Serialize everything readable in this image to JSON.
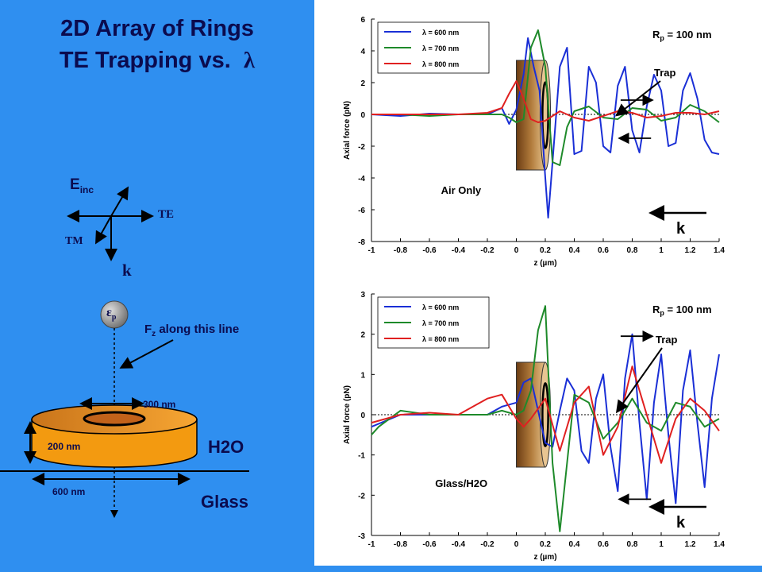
{
  "slide": {
    "title_line1": "2D Array of Rings",
    "title_line2": "TE Trapping vs.",
    "title_symbol": "λ"
  },
  "polarization_diagram": {
    "e_label": "E",
    "e_sub": "inc",
    "te_label": "TE",
    "tm_label": "TM",
    "k_label": "k"
  },
  "ring_diagram": {
    "particle_label": "ε",
    "particle_sub": "p",
    "fz_label": "F",
    "fz_sub": "z",
    "fz_text": " along this line",
    "dim_300": "300 nm",
    "dim_200": "200 nm",
    "dim_600": "600 nm",
    "medium_top": "H2O",
    "medium_bottom": "Glass"
  },
  "colors": {
    "slide_bg": "#2f8ff0",
    "title": "#0b0b4e",
    "ring_fill": "#f39a10",
    "series_600": "#1a2fd6",
    "series_700": "#1e8a2a",
    "series_800": "#e02020"
  },
  "chart_data": [
    {
      "type": "line",
      "ylabel": "Axial force (pN)",
      "xlabel": "z (µm)",
      "xlim": [
        -1,
        1.4
      ],
      "ylim": [
        -8,
        6
      ],
      "xticks": [
        "-1",
        "-0.8",
        "-0.6",
        "-0.4",
        "-0.2",
        "0",
        "0.2",
        "0.4",
        "0.6",
        "0.8",
        "1",
        "1.2",
        "1.4"
      ],
      "yticks": [
        "6",
        "4",
        "2",
        "0",
        "-2",
        "-4",
        "-6",
        "-8"
      ],
      "annotations": {
        "rp_label": "R",
        "rp_sub": "p",
        "rp_value": " = 100 nm",
        "trap": "Trap",
        "medium": "Air Only",
        "k": "k"
      },
      "series": [
        {
          "name": "λ =  600 nm",
          "color": "#1a2fd6",
          "x": [
            -1,
            -0.8,
            -0.6,
            -0.4,
            -0.2,
            -0.1,
            -0.05,
            0,
            0.05,
            0.08,
            0.12,
            0.16,
            0.2,
            0.22,
            0.25,
            0.3,
            0.35,
            0.4,
            0.45,
            0.5,
            0.55,
            0.6,
            0.65,
            0.7,
            0.75,
            0.8,
            0.85,
            0.9,
            0.95,
            1.0,
            1.05,
            1.1,
            1.15,
            1.2,
            1.25,
            1.3,
            1.35,
            1.4
          ],
          "y": [
            0,
            -0.1,
            0.05,
            0,
            0,
            0.4,
            -0.6,
            0.3,
            2.5,
            4.8,
            3.0,
            1.5,
            -4.0,
            -6.5,
            -3.0,
            3.0,
            4.2,
            -2.5,
            -2.3,
            3.0,
            2.0,
            -2.0,
            -2.4,
            1.8,
            3.0,
            -1.0,
            -2.4,
            0.5,
            2.5,
            1.5,
            -2.0,
            -1.8,
            1.5,
            2.6,
            1.0,
            -1.6,
            -2.4,
            -2.5
          ]
        },
        {
          "name": "λ = 700 nm",
          "color": "#1e8a2a",
          "x": [
            -1,
            -0.8,
            -0.6,
            -0.4,
            -0.2,
            -0.1,
            -0.05,
            0,
            0.05,
            0.1,
            0.15,
            0.2,
            0.25,
            0.3,
            0.35,
            0.4,
            0.5,
            0.6,
            0.7,
            0.8,
            0.9,
            1.0,
            1.1,
            1.2,
            1.3,
            1.4
          ],
          "y": [
            0,
            0,
            -0.1,
            0,
            0,
            0,
            -0.2,
            -0.5,
            -0.3,
            4.2,
            5.3,
            3.0,
            -3.0,
            -3.2,
            -0.8,
            0.2,
            0.5,
            -0.2,
            -0.3,
            0.4,
            0.3,
            -0.4,
            -0.2,
            0.6,
            0.2,
            -0.5
          ]
        },
        {
          "name": "λ = 800 nm",
          "color": "#e02020",
          "x": [
            -1,
            -0.8,
            -0.6,
            -0.4,
            -0.2,
            -0.1,
            -0.05,
            0,
            0.05,
            0.1,
            0.15,
            0.2,
            0.25,
            0.3,
            0.4,
            0.5,
            0.6,
            0.7,
            0.8,
            0.9,
            1.0,
            1.1,
            1.2,
            1.3,
            1.4
          ],
          "y": [
            0,
            0,
            0,
            0,
            0.1,
            0.4,
            1.3,
            2.1,
            1.0,
            -0.3,
            -0.5,
            -0.4,
            -0.1,
            0.2,
            -0.2,
            -0.4,
            -0.1,
            0.2,
            0.1,
            -0.2,
            -0.1,
            0.1,
            0.1,
            0,
            0.2
          ]
        }
      ]
    },
    {
      "type": "line",
      "ylabel": "Axial force (pN)",
      "xlabel": "z (µm)",
      "xlim": [
        -1,
        1.4
      ],
      "ylim": [
        -3,
        3
      ],
      "xticks": [
        "-1",
        "-0.8",
        "-0.6",
        "-0.4",
        "-0.2",
        "0",
        "0.2",
        "0.4",
        "0.6",
        "0.8",
        "1",
        "1.2",
        "1.4"
      ],
      "yticks": [
        "3",
        "2",
        "1",
        "0",
        "-1",
        "-2",
        "-3"
      ],
      "annotations": {
        "rp_label": "R",
        "rp_sub": "p",
        "rp_value": " = 100 nm",
        "trap": "Trap",
        "medium": "Glass/H2O",
        "k": "k"
      },
      "series": [
        {
          "name": "λ =  600 nm",
          "color": "#1a2fd6",
          "x": [
            -1,
            -0.8,
            -0.6,
            -0.4,
            -0.2,
            -0.1,
            0,
            0.05,
            0.1,
            0.15,
            0.2,
            0.25,
            0.3,
            0.35,
            0.4,
            0.45,
            0.5,
            0.55,
            0.6,
            0.65,
            0.7,
            0.75,
            0.8,
            0.85,
            0.9,
            0.95,
            1.0,
            1.05,
            1.1,
            1.15,
            1.2,
            1.25,
            1.3,
            1.35,
            1.4
          ],
          "y": [
            -0.3,
            0,
            0,
            0,
            0,
            0.2,
            0.3,
            0.8,
            0.9,
            0.1,
            -0.7,
            -0.8,
            0.1,
            0.9,
            0.6,
            -0.9,
            -1.2,
            0.4,
            1.0,
            -0.8,
            -1.9,
            0.9,
            2.0,
            -0.2,
            -2.1,
            0.3,
            1.5,
            -0.5,
            -2.2,
            0.6,
            1.6,
            -0.2,
            -1.8,
            0.4,
            1.5
          ]
        },
        {
          "name": "λ = 700 nm",
          "color": "#1e8a2a",
          "x": [
            -1,
            -0.95,
            -0.8,
            -0.6,
            -0.4,
            -0.2,
            -0.1,
            0,
            0.05,
            0.1,
            0.15,
            0.2,
            0.25,
            0.3,
            0.35,
            0.4,
            0.5,
            0.6,
            0.7,
            0.8,
            0.9,
            1.0,
            1.1,
            1.2,
            1.3,
            1.4
          ],
          "y": [
            -0.5,
            -0.3,
            0.1,
            0,
            0,
            0,
            0.1,
            0,
            0.1,
            0.6,
            2.1,
            2.7,
            -1.2,
            -2.9,
            -1.2,
            0.5,
            0.3,
            -0.6,
            -0.2,
            0.4,
            -0.2,
            -0.4,
            0.3,
            0.2,
            -0.3,
            -0.1
          ]
        },
        {
          "name": "λ = 800 nm",
          "color": "#e02020",
          "x": [
            -1,
            -0.8,
            -0.6,
            -0.4,
            -0.2,
            -0.1,
            0,
            0.05,
            0.1,
            0.2,
            0.3,
            0.4,
            0.5,
            0.6,
            0.7,
            0.8,
            0.9,
            1.0,
            1.1,
            1.2,
            1.3,
            1.4
          ],
          "y": [
            -0.2,
            0,
            0.05,
            0,
            0.4,
            0.5,
            -0.1,
            -0.3,
            -0.1,
            0.4,
            -0.9,
            0.3,
            0.7,
            -1.0,
            -0.3,
            1.2,
            0,
            -1.2,
            -0.1,
            0.4,
            0.1,
            -0.4
          ]
        }
      ]
    }
  ]
}
